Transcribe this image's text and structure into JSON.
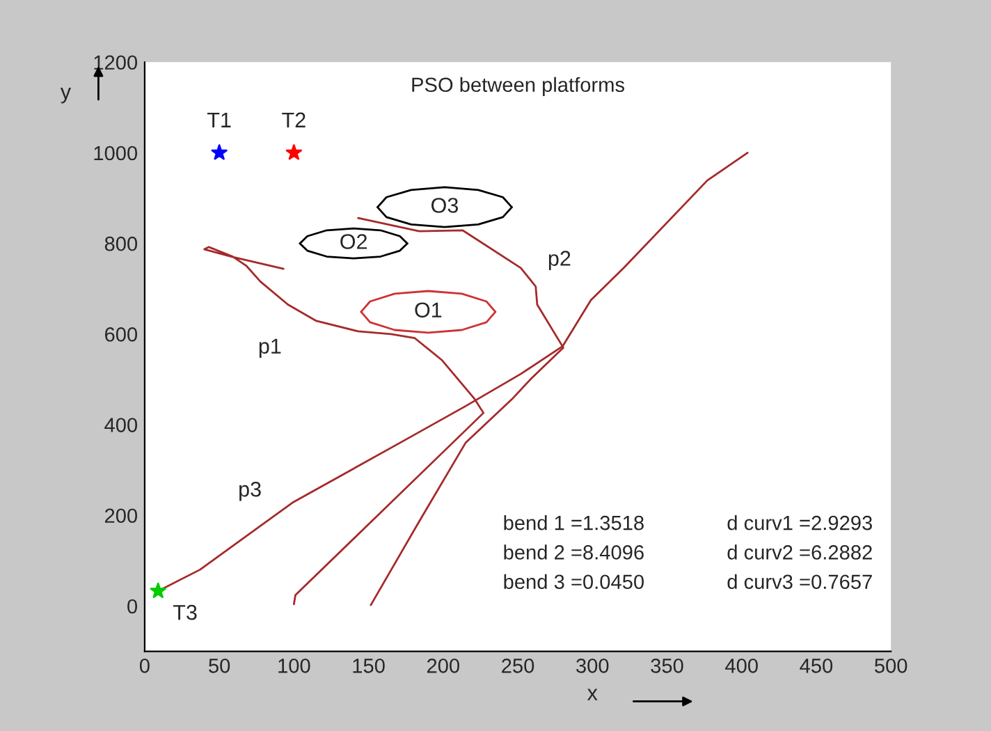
{
  "chart_data": {
    "type": "line",
    "title": "PSO between platforms",
    "xlabel": "x",
    "ylabel": "y",
    "xlim": [
      0,
      500
    ],
    "ylim": [
      -100,
      1200
    ],
    "xticks": [
      0,
      50,
      100,
      150,
      200,
      250,
      300,
      350,
      400,
      450,
      500
    ],
    "yticks": [
      0,
      200,
      400,
      600,
      800,
      1000,
      1200
    ],
    "grid": false,
    "legend": false,
    "line_style": "solid",
    "series": [
      {
        "name": "p1",
        "color": "#a52a2a",
        "x": [
          100,
          101,
          227,
          221,
          199,
          181,
          165,
          143,
          115,
          96,
          77.5,
          68,
          59,
          43,
          40,
          59,
          93
        ],
        "values": [
          4,
          24,
          426,
          457,
          543,
          591,
          600,
          606,
          629,
          665,
          716,
          751,
          771,
          792,
          787,
          770,
          744
        ]
      },
      {
        "name": "p2",
        "color": "#a52a2a",
        "x": [
          151.5,
          184,
          215,
          246,
          259,
          280.5,
          263,
          262,
          252,
          213,
          184,
          143
        ],
        "values": [
          2,
          187,
          360,
          456,
          502,
          570,
          665,
          705,
          746,
          829,
          827,
          856
        ]
      },
      {
        "name": "p3",
        "color": "#a52a2a",
        "x": [
          9,
          37,
          99,
          171,
          215,
          252,
          280,
          299,
          321,
          377,
          404
        ],
        "values": [
          33,
          80,
          228,
          360,
          441,
          512,
          573,
          675,
          746,
          939,
          1000
        ]
      },
      {
        "name": "O1",
        "color": "#cc3333",
        "x": [
          235,
          229,
          212.5,
          190,
          167.5,
          151,
          145
        ],
        "values": [
          649,
          672,
          689,
          695,
          689,
          672,
          649
        ]
      },
      {
        "color": "#cc3333",
        "x": [
          145,
          151,
          167.5,
          190,
          212.5,
          229,
          235
        ],
        "values": [
          649,
          626,
          609,
          603,
          609,
          626,
          649
        ]
      },
      {
        "name": "O2",
        "color": "#000000",
        "x": [
          176,
          171,
          158,
          140,
          122,
          109,
          104
        ],
        "values": [
          800,
          816,
          829,
          833,
          829,
          816,
          800
        ]
      },
      {
        "color": "#000000",
        "x": [
          104,
          109,
          122,
          140,
          158,
          171,
          176
        ],
        "values": [
          800,
          784,
          771,
          767,
          771,
          784,
          800
        ]
      },
      {
        "name": "O3",
        "color": "#000000",
        "x": [
          246,
          240,
          223.5,
          201,
          178.5,
          162,
          156
        ],
        "values": [
          880,
          902,
          918,
          924,
          918,
          902,
          880
        ]
      },
      {
        "color": "#000000",
        "x": [
          156,
          162,
          178.5,
          201,
          223.5,
          240,
          246
        ],
        "values": [
          880,
          858,
          842,
          836,
          842,
          858,
          880
        ]
      },
      {
        "name": "T1",
        "type": "scatter",
        "color": "#0000ff",
        "marker": "star",
        "x": [
          50
        ],
        "values": [
          1000
        ]
      },
      {
        "name": "T2",
        "type": "scatter",
        "color": "#ff0000",
        "marker": "star",
        "x": [
          100
        ],
        "values": [
          1000
        ]
      },
      {
        "name": "T3",
        "type": "scatter",
        "color": "#00cc00",
        "marker": "star",
        "x": [
          9
        ],
        "values": [
          33
        ]
      }
    ],
    "annotations": [
      "bend 1 =1.3518",
      "bend 2 =8.4096",
      "bend 3 =0.0450",
      "d curv1 =2.9293",
      "d curv2 =6.2882",
      "d curv3 =0.7657"
    ]
  }
}
